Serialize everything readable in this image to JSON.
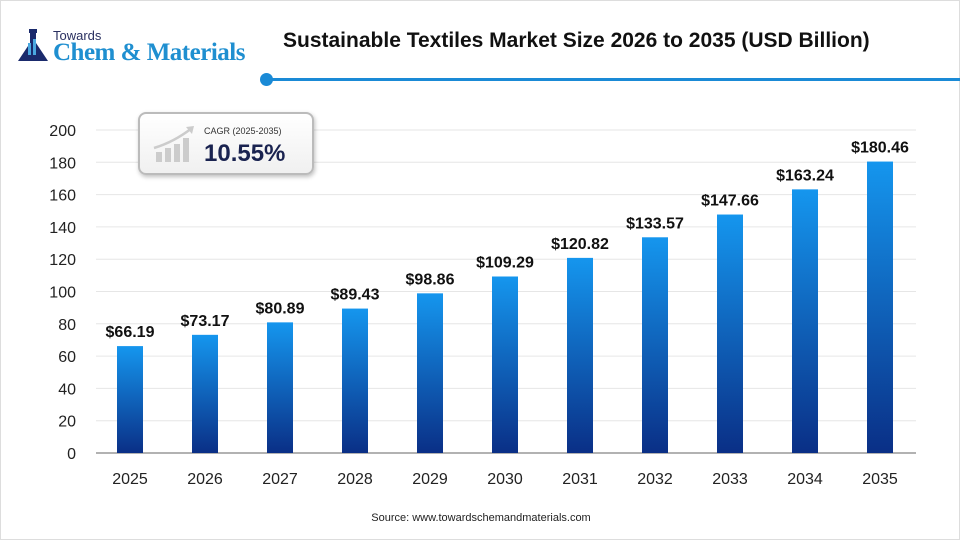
{
  "logo": {
    "line1": "Towards",
    "line2": "Chem & Materials"
  },
  "header": {
    "title": "Sustainable Textiles Market Size 2026 to 2035 (USD Billion)"
  },
  "cagr": {
    "label": "CAGR (2025-2035)",
    "value": "10.55%"
  },
  "source": "Source:  www.towardschemandmaterials.com",
  "colors": {
    "bar_top": "#1596ee",
    "bar_bottom": "#0a2f86",
    "accent": "#1a8ad6"
  },
  "chart_data": {
    "type": "bar",
    "categories": [
      "2025",
      "2026",
      "2027",
      "2028",
      "2029",
      "2030",
      "2031",
      "2032",
      "2033",
      "2034",
      "2035"
    ],
    "values": [
      66.19,
      73.17,
      80.89,
      89.43,
      98.86,
      109.29,
      120.82,
      133.57,
      147.66,
      163.24,
      180.46
    ],
    "data_labels": [
      "$66.19",
      "$73.17",
      "$80.89",
      "$89.43",
      "$98.86",
      "$109.29",
      "$120.82",
      "$133.57",
      "$147.66",
      "$163.24",
      "$180.46"
    ],
    "ylim": [
      0,
      200
    ],
    "yticks": [
      0,
      20,
      40,
      60,
      80,
      100,
      120,
      140,
      160,
      180,
      200
    ],
    "grid": true,
    "title": "Sustainable Textiles Market Size 2026 to 2035 (USD Billion)"
  }
}
